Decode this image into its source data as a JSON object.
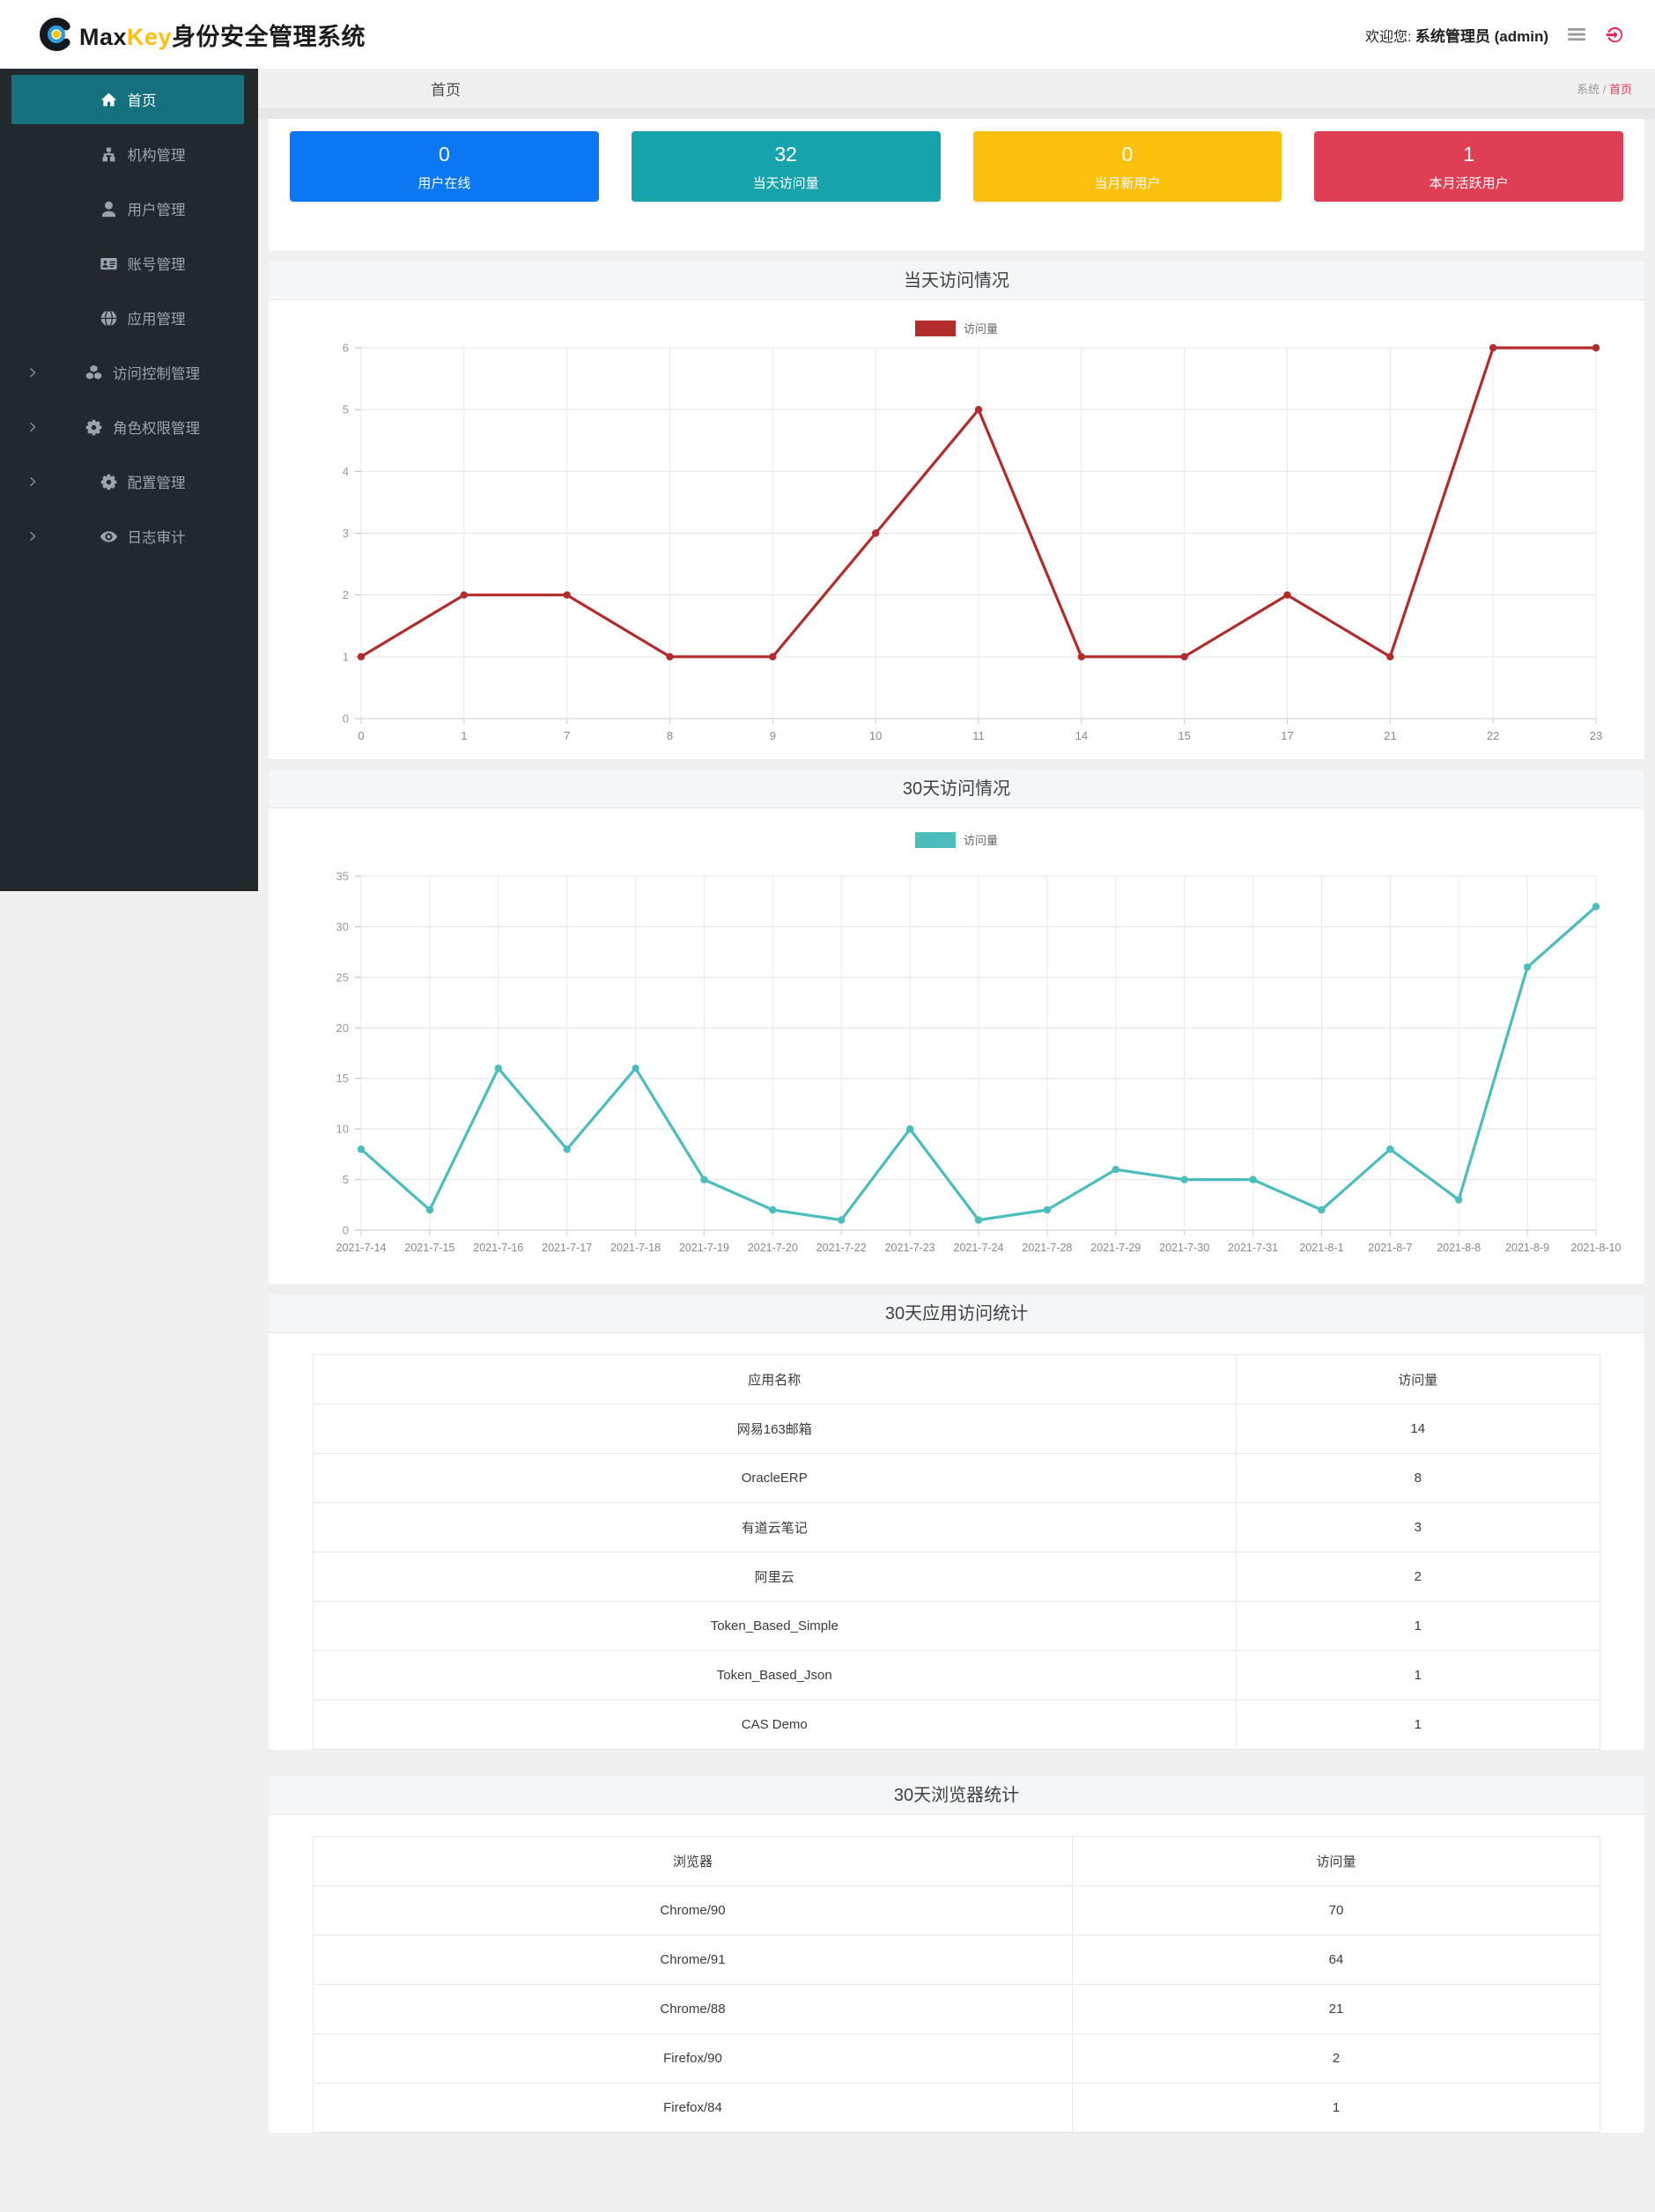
{
  "header": {
    "logo_max": "Max",
    "logo_key": "Key",
    "logo_suffix": "身份安全管理系统",
    "welcome_prefix": "欢迎您:",
    "welcome_user": "系统管理员 (admin)",
    "logout_color": "#e91e63",
    "menu_icon_color": "#9b9b9b"
  },
  "sidebar": {
    "items": [
      {
        "name": "home",
        "label": "首页",
        "icon": "home-icon",
        "active": true,
        "expandable": false
      },
      {
        "name": "org-management",
        "label": "机构管理",
        "icon": "sitemap-icon",
        "active": false,
        "expandable": false
      },
      {
        "name": "user-management",
        "label": "用户管理",
        "icon": "user-icon",
        "active": false,
        "expandable": false
      },
      {
        "name": "account-management",
        "label": "账号管理",
        "icon": "id-card-icon",
        "active": false,
        "expandable": false
      },
      {
        "name": "app-management",
        "label": "应用管理",
        "icon": "globe-icon",
        "active": false,
        "expandable": false
      },
      {
        "name": "access-control-management",
        "label": "访问控制管理",
        "icon": "cubes-icon",
        "active": false,
        "expandable": true
      },
      {
        "name": "role-permission-management",
        "label": "角色权限管理",
        "icon": "cogs-icon",
        "active": false,
        "expandable": true
      },
      {
        "name": "config-management",
        "label": "配置管理",
        "icon": "cogs-icon",
        "active": false,
        "expandable": true
      },
      {
        "name": "log-audit",
        "label": "日志审计",
        "icon": "eye-icon",
        "active": false,
        "expandable": true
      }
    ]
  },
  "breadcrumb": {
    "page_title": "首页",
    "trail_root": "系统",
    "trail_separator": "/",
    "trail_current": "首页",
    "current_color": "#e5395f"
  },
  "stat_cards": [
    {
      "value": "0",
      "label": "用户在线",
      "color": "#0b77f2"
    },
    {
      "value": "32",
      "label": "当天访问量",
      "color": "#17a3ab"
    },
    {
      "value": "0",
      "label": "当月新用户",
      "color": "#fdc10d"
    },
    {
      "value": "1",
      "label": "本月活跃用户",
      "color": "#e03e54"
    }
  ],
  "chart_data": [
    {
      "type": "line",
      "title": "当天访问情况",
      "legend": "访问量",
      "color": "#b22c2c",
      "categories": [
        "0",
        "1",
        "7",
        "8",
        "9",
        "10",
        "11",
        "14",
        "15",
        "17",
        "21",
        "22",
        "23"
      ],
      "values": [
        1,
        2,
        2,
        1,
        1,
        3,
        5,
        1,
        1,
        2,
        1,
        6,
        6
      ],
      "xlabel": "",
      "ylabel": "",
      "ylim": [
        0,
        6
      ],
      "ytick_step": 1,
      "grid": true,
      "legend_position": "top-center"
    },
    {
      "type": "line",
      "title": "30天访问情况",
      "legend": "访问量",
      "color": "#4cbdbd",
      "categories": [
        "2021-7-14",
        "2021-7-15",
        "2021-7-16",
        "2021-7-17",
        "2021-7-18",
        "2021-7-19",
        "2021-7-20",
        "2021-7-22",
        "2021-7-23",
        "2021-7-24",
        "2021-7-28",
        "2021-7-29",
        "2021-7-30",
        "2021-7-31",
        "2021-8-1",
        "2021-8-7",
        "2021-8-8",
        "2021-8-9",
        "2021-8-10"
      ],
      "values": [
        8,
        2,
        16,
        8,
        16,
        5,
        2,
        1,
        10,
        1,
        2,
        6,
        5,
        5,
        2,
        8,
        3,
        26,
        32
      ],
      "xlabel": "",
      "ylabel": "",
      "ylim": [
        0,
        35
      ],
      "ytick_step": 5,
      "grid": true,
      "legend_position": "top-center"
    }
  ],
  "tables": {
    "app": {
      "title": "30天应用访问统计",
      "headers": [
        "应用名称",
        "访问量"
      ],
      "col_split": "71.7%",
      "rows": [
        [
          "网易163邮箱",
          "14"
        ],
        [
          "OracleERP",
          "8"
        ],
        [
          "有道云笔记",
          "3"
        ],
        [
          "阿里云",
          "2"
        ],
        [
          "Token_Based_Simple",
          "1"
        ],
        [
          "Token_Based_Json",
          "1"
        ],
        [
          "CAS Demo",
          "1"
        ]
      ]
    },
    "browser": {
      "title": "30天浏览器统计",
      "headers": [
        "浏览器",
        "访问量"
      ],
      "col_split": "59%",
      "rows": [
        [
          "Chrome/90",
          "70"
        ],
        [
          "Chrome/91",
          "64"
        ],
        [
          "Chrome/88",
          "21"
        ],
        [
          "Firefox/90",
          "2"
        ],
        [
          "Firefox/84",
          "1"
        ]
      ]
    }
  }
}
